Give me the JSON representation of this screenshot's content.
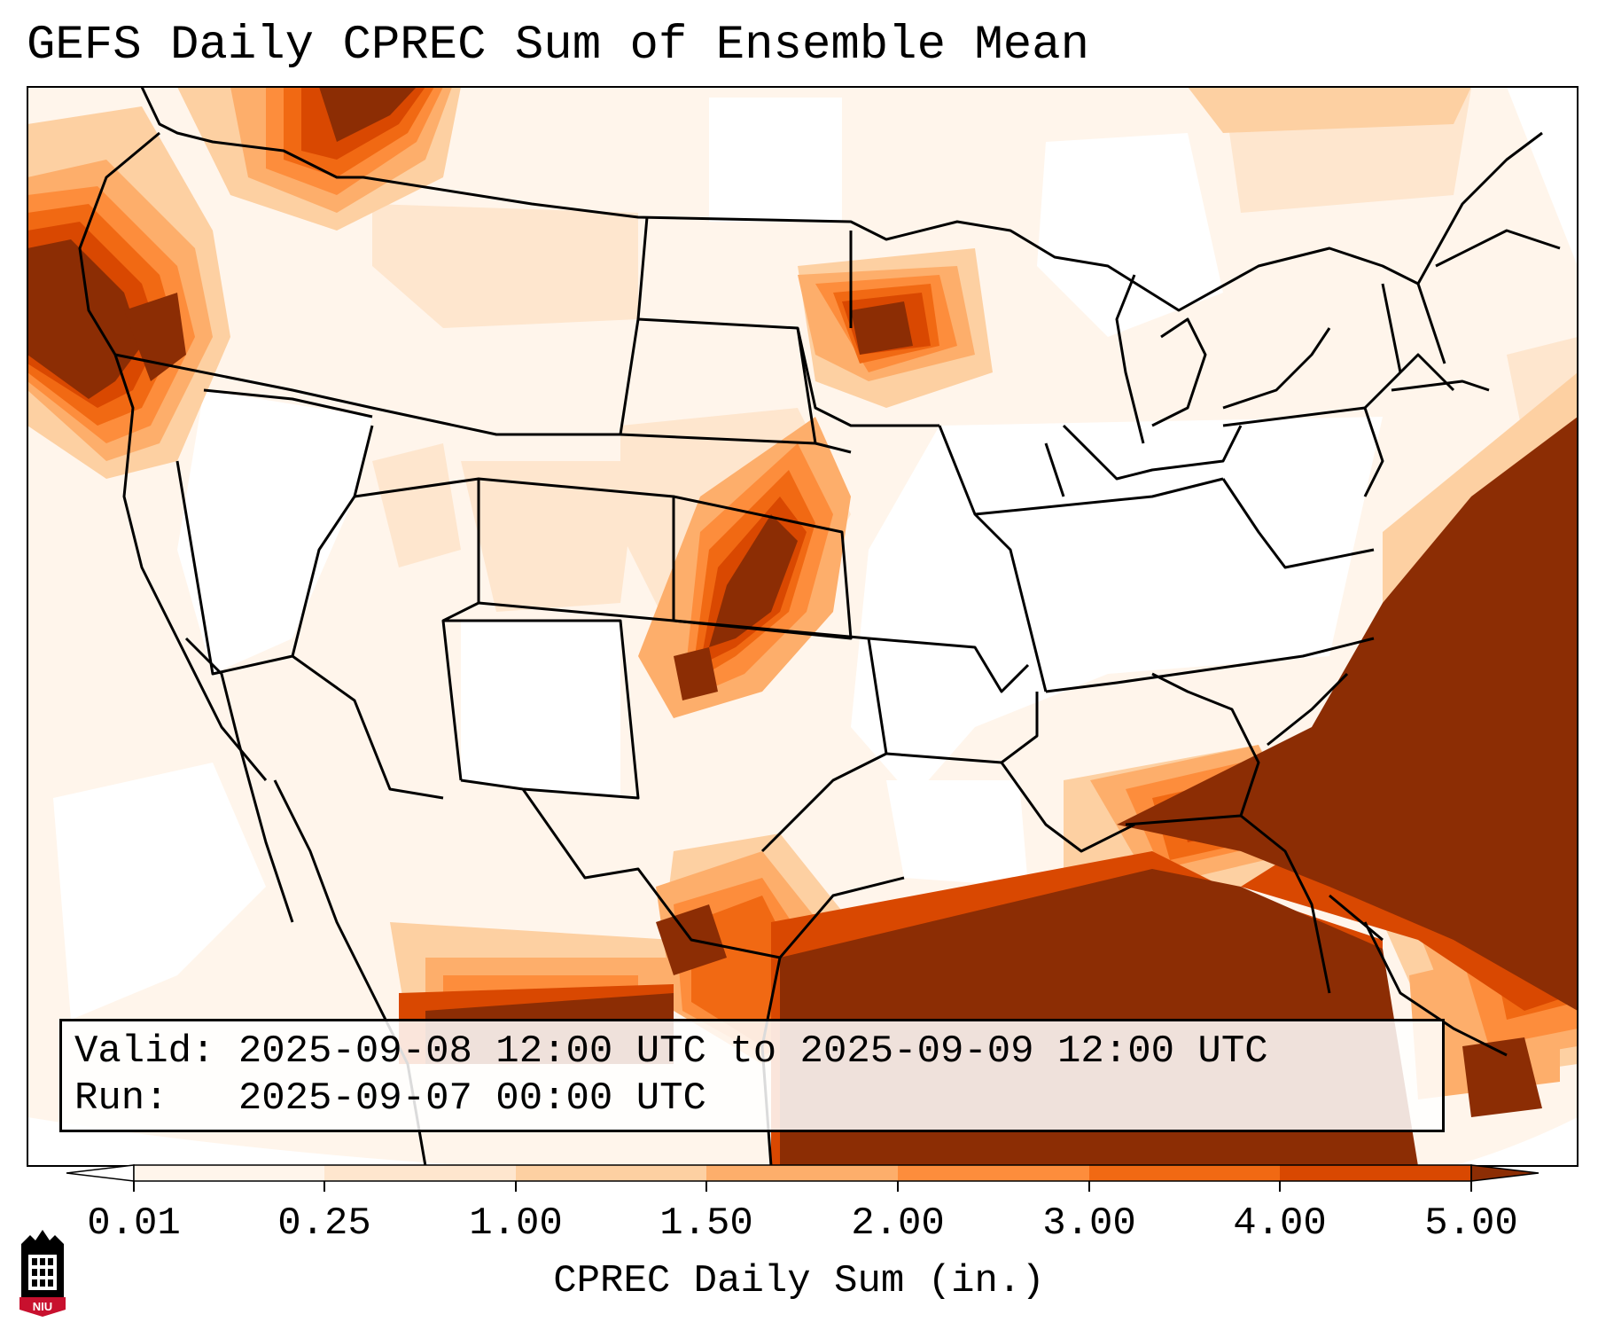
{
  "title": "GEFS Daily CPREC Sum of Ensemble Mean",
  "info": {
    "valid_label": "Valid:",
    "valid_value": "2025-09-08 12:00 UTC to 2025-09-09 12:00 UTC",
    "run_label": "Run:",
    "run_value": "2025-09-07 00:00 UTC"
  },
  "colorbar": {
    "label": "CPREC Daily Sum (in.)",
    "ticks": [
      "0.01",
      "0.25",
      "1.00",
      "1.50",
      "2.00",
      "3.00",
      "4.00",
      "5.00"
    ],
    "colors": [
      "#fff5eb",
      "#fee6ce",
      "#fdd0a2",
      "#fdae6b",
      "#fd8d3c",
      "#f16913",
      "#d94801",
      "#8c2d04"
    ],
    "extend": "both"
  },
  "logo": {
    "text": "NIU",
    "color": "#c8102e"
  },
  "colors": {
    "lightest": "#fff5eb",
    "light": "#fee6ce",
    "medium_light": "#fdd0a2",
    "medium": "#fdae6b",
    "orange": "#fd8d3c",
    "dark_orange": "#f16913",
    "red_orange": "#d94801",
    "darkest": "#8c2d04"
  }
}
